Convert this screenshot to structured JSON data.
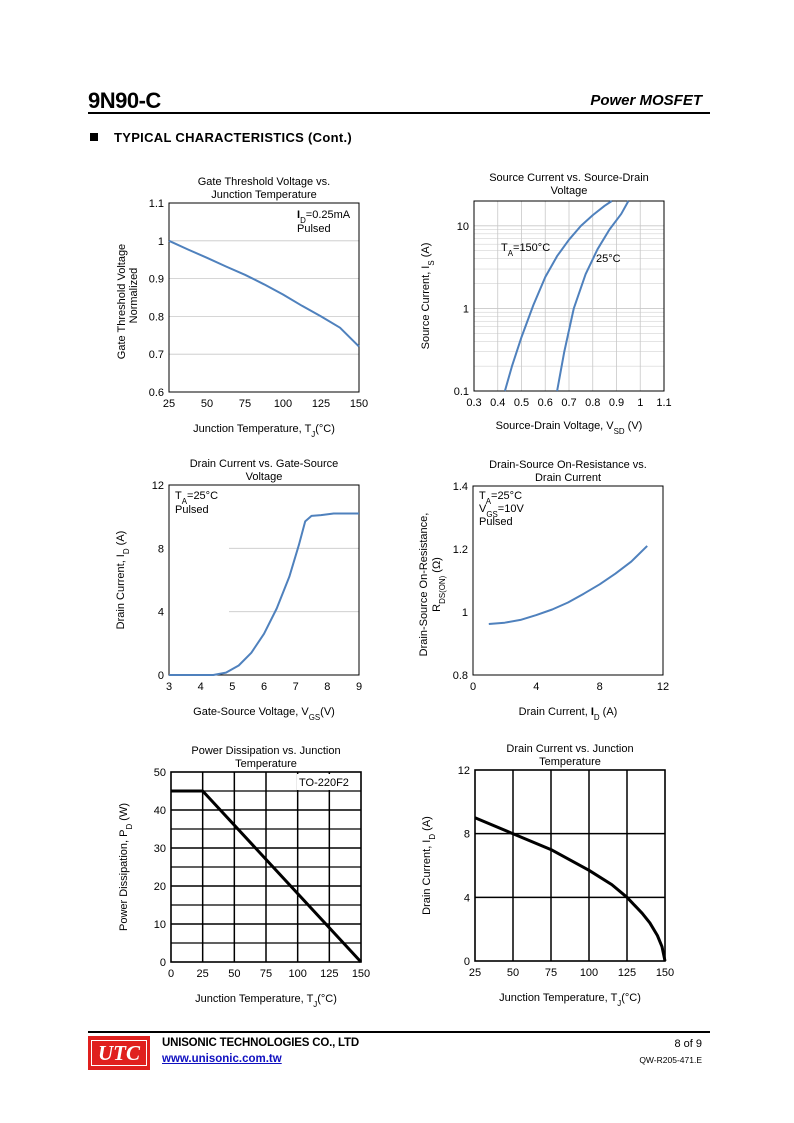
{
  "header": {
    "part": "9N90-C",
    "type": "Power MOSFET"
  },
  "section_title": "TYPICAL CHARACTERISTICS (Cont.)",
  "footer": {
    "logo": "UTC",
    "company": "UNISONIC TECHNOLOGIES CO., LTD",
    "url": "www.unisonic.com.tw",
    "page": "8 of 9",
    "doc": "QW-R205-471.E"
  },
  "colors": {
    "curve_blue": "#4f81bd",
    "grid_light": "#c8c8c8",
    "logo_red": "#e0201e"
  },
  "chart_data": [
    {
      "id": "c1",
      "type": "line",
      "title": [
        "Gate Threshold  Voltage vs.",
        "Junction Temperature"
      ],
      "xlabel": "Junction Temperature, T",
      "xlabel_sub": "J",
      "xlabel_tail": "(°C)",
      "ylabel": [
        "Gate Threshold  Voltage",
        "Normalized"
      ],
      "xlim": [
        25,
        150
      ],
      "ylim": [
        0.6,
        1.1
      ],
      "xticks": [
        "25",
        "50",
        "75",
        "100",
        "125",
        "150"
      ],
      "xtick_vals": [
        25,
        50,
        75,
        100,
        125,
        150
      ],
      "yticks": [
        "0.6",
        "0.7",
        "0.8",
        "0.9",
        "1",
        "1.1"
      ],
      "ytick_vals": [
        0.6,
        0.7,
        0.8,
        0.9,
        1.0,
        1.1
      ],
      "annotation": [
        "I",
        "D",
        "=0.25mA",
        "Pulsed"
      ],
      "series": [
        {
          "name": "VTH",
          "x": [
            25,
            37.5,
            50,
            62.5,
            75,
            87.5,
            100,
            112.5,
            125,
            137.5,
            150
          ],
          "y": [
            1.0,
            0.977,
            0.955,
            0.932,
            0.91,
            0.885,
            0.858,
            0.828,
            0.8,
            0.77,
            0.72
          ]
        }
      ]
    },
    {
      "id": "c2",
      "type": "line",
      "title": [
        "Source Current vs. Source-Drain",
        "Voltage"
      ],
      "xlabel": "Source-Drain Voltage, V",
      "xlabel_sub": "SD",
      "xlabel_tail": " (V)",
      "ylabel": [
        "Source Current, I",
        "S",
        " (A)"
      ],
      "xlim": [
        0.3,
        1.1
      ],
      "ylim": [
        0.1,
        20
      ],
      "yscale": "log",
      "xticks": [
        "0.3",
        "0.4",
        "0.5",
        "0.6",
        "0.7",
        "0.8",
        "0.9",
        "1",
        "1.1"
      ],
      "xtick_vals": [
        0.3,
        0.4,
        0.5,
        0.6,
        0.7,
        0.8,
        0.9,
        1.0,
        1.1
      ],
      "yticks": [
        "0.1",
        "1",
        "10"
      ],
      "ytick_vals": [
        0.1,
        1,
        10
      ],
      "labels": [
        [
          "T",
          "A",
          "=150°C"
        ],
        [
          "25°C"
        ]
      ],
      "series": [
        {
          "name": "TA=150°C",
          "x": [
            0.43,
            0.46,
            0.5,
            0.55,
            0.6,
            0.65,
            0.7,
            0.75,
            0.8,
            0.85,
            0.88
          ],
          "y": [
            0.1,
            0.2,
            0.45,
            1.1,
            2.4,
            4.3,
            6.8,
            10,
            13.5,
            17.5,
            20
          ]
        },
        {
          "name": "25°C",
          "x": [
            0.65,
            0.68,
            0.72,
            0.77,
            0.82,
            0.87,
            0.92,
            0.95
          ],
          "y": [
            0.1,
            0.3,
            1.0,
            2.6,
            5.2,
            9.0,
            14.0,
            20
          ]
        }
      ]
    },
    {
      "id": "c3",
      "type": "line",
      "title": [
        "Drain Current vs. Gate-Source",
        "Voltage"
      ],
      "xlabel": "Gate-Source Voltage, V",
      "xlabel_sub": "GS",
      "xlabel_tail": "(V)",
      "ylabel": [
        "Drain Current, I",
        "D",
        " (A)"
      ],
      "xlim": [
        3,
        9
      ],
      "ylim": [
        0,
        12
      ],
      "xticks": [
        "3",
        "4",
        "5",
        "6",
        "7",
        "8",
        "9"
      ],
      "xtick_vals": [
        3,
        4,
        5,
        6,
        7,
        8,
        9
      ],
      "yticks": [
        "0",
        "4",
        "8",
        "12"
      ],
      "ytick_vals": [
        0,
        4,
        8,
        12
      ],
      "annotation": [
        "T",
        "A",
        "=25°C",
        "Pulsed"
      ],
      "series": [
        {
          "name": "ID",
          "x": [
            3,
            4.4,
            4.8,
            5.2,
            5.6,
            6,
            6.4,
            6.8,
            7.1,
            7.3,
            7.5,
            7.8,
            8.2,
            9
          ],
          "y": [
            0,
            0,
            0.15,
            0.6,
            1.4,
            2.6,
            4.2,
            6.2,
            8.2,
            9.7,
            10.05,
            10.1,
            10.2,
            10.2
          ]
        }
      ]
    },
    {
      "id": "c4",
      "type": "line",
      "title": [
        "Drain-Source On-Resistance vs.",
        "Drain Current"
      ],
      "xlabel": "Drain Current, ",
      "xlabel_main": "I",
      "xlabel_sub": "D",
      "xlabel_tail": " (A)",
      "ylabel": [
        "Drain-Source On-Resistance,",
        "R",
        "DS(ON)",
        " (Ω)"
      ],
      "xlim": [
        0,
        12
      ],
      "ylim": [
        0.8,
        1.4
      ],
      "xticks": [
        "0",
        "4",
        "8",
        "12"
      ],
      "xtick_vals": [
        0,
        4,
        8,
        12
      ],
      "yticks": [
        "0.8",
        "1",
        "1.2",
        "1.4"
      ],
      "ytick_vals": [
        0.8,
        1.0,
        1.2,
        1.4
      ],
      "annotation": [
        "T",
        "A",
        "=25°C",
        "V",
        "GS",
        "=10V",
        "Pulsed"
      ],
      "series": [
        {
          "name": "RDS(ON)",
          "x": [
            1,
            2,
            3,
            4,
            5,
            6,
            7,
            8,
            9,
            10,
            11
          ],
          "y": [
            0.962,
            0.966,
            0.975,
            0.99,
            1.008,
            1.03,
            1.058,
            1.088,
            1.122,
            1.16,
            1.21
          ]
        }
      ]
    },
    {
      "id": "c5",
      "type": "line",
      "title": [
        "Power Dissipation vs. Junction",
        "Temperature"
      ],
      "xlabel": "Junction Temperature, T",
      "xlabel_sub": "J",
      "xlabel_tail": "(°C)",
      "ylabel": [
        "Power Dissipation, P",
        "D",
        " (W)"
      ],
      "xlim": [
        0,
        150
      ],
      "ylim": [
        0,
        50
      ],
      "xticks": [
        "0",
        "25",
        "50",
        "75",
        "100",
        "125",
        "150"
      ],
      "xtick_vals": [
        0,
        25,
        50,
        75,
        100,
        125,
        150
      ],
      "yticks": [
        "0",
        "10",
        "20",
        "30",
        "40",
        "50"
      ],
      "ytick_vals": [
        0,
        10,
        20,
        30,
        40,
        50
      ],
      "annotation": [
        "TO-220F2"
      ],
      "series": [
        {
          "name": "PD",
          "x": [
            0,
            25,
            150
          ],
          "y": [
            45,
            45,
            0
          ]
        }
      ]
    },
    {
      "id": "c6",
      "type": "line",
      "title": [
        "Drain Current vs. Junction",
        "Temperature"
      ],
      "xlabel": "Junction Temperature, T",
      "xlabel_sub": "J",
      "xlabel_tail": "(°C)",
      "ylabel": [
        "Drain Current, I",
        "D",
        " (A)"
      ],
      "xlim": [
        25,
        150
      ],
      "ylim": [
        0,
        12
      ],
      "xticks": [
        "25",
        "50",
        "75",
        "100",
        "125",
        "150"
      ],
      "xtick_vals": [
        25,
        50,
        75,
        100,
        125,
        150
      ],
      "yticks": [
        "0",
        "4",
        "8",
        "12"
      ],
      "ytick_vals": [
        0,
        4,
        8,
        12
      ],
      "series": [
        {
          "name": "ID",
          "x": [
            25,
            50,
            75,
            100,
            115,
            125,
            135,
            140,
            145,
            148,
            150
          ],
          "y": [
            9,
            8,
            7,
            5.7,
            4.8,
            4.0,
            3.0,
            2.4,
            1.6,
            0.9,
            0
          ]
        }
      ]
    }
  ]
}
